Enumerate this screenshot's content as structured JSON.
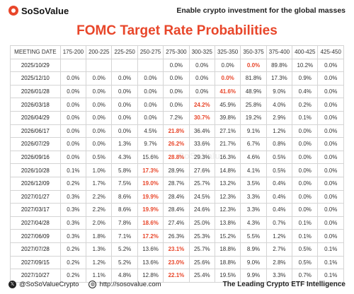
{
  "header": {
    "brand": "SoSoValue",
    "tagline": "Enable crypto investment for the global masses"
  },
  "title": "FOMC Target Rate Probabilities",
  "table": {
    "columns": [
      "MEETING DATE",
      "175-200",
      "200-225",
      "225-250",
      "250-275",
      "275-300",
      "300-325",
      "325-350",
      "350-375",
      "375-400",
      "400-425",
      "425-450"
    ],
    "rows": [
      {
        "date": "2025/10/29",
        "values": [
          "",
          "",
          "",
          "",
          "0.0%",
          "0.0%",
          "0.0%",
          "0.0%",
          "89.8%",
          "10.2%",
          "0.0%"
        ],
        "hi": 8
      },
      {
        "date": "2025/12/10",
        "values": [
          "0.0%",
          "0.0%",
          "0.0%",
          "0.0%",
          "0.0%",
          "0.0%",
          "0.0%",
          "81.8%",
          "17.3%",
          "0.9%",
          "0.0%"
        ],
        "hi": 7
      },
      {
        "date": "2026/01/28",
        "values": [
          "0.0%",
          "0.0%",
          "0.0%",
          "0.0%",
          "0.0%",
          "0.0%",
          "41.6%",
          "48.9%",
          "9.0%",
          "0.4%",
          "0.0%"
        ],
        "hi": 7
      },
      {
        "date": "2026/03/18",
        "values": [
          "0.0%",
          "0.0%",
          "0.0%",
          "0.0%",
          "0.0%",
          "24.2%",
          "45.9%",
          "25.8%",
          "4.0%",
          "0.2%",
          "0.0%"
        ],
        "hi": 6
      },
      {
        "date": "2026/04/29",
        "values": [
          "0.0%",
          "0.0%",
          "0.0%",
          "0.0%",
          "7.2%",
          "30.7%",
          "39.8%",
          "19.2%",
          "2.9%",
          "0.1%",
          "0.0%"
        ],
        "hi": 6
      },
      {
        "date": "2026/06/17",
        "values": [
          "0.0%",
          "0.0%",
          "0.0%",
          "4.5%",
          "21.8%",
          "36.4%",
          "27.1%",
          "9.1%",
          "1.2%",
          "0.0%",
          "0.0%"
        ],
        "hi": 5
      },
      {
        "date": "2026/07/29",
        "values": [
          "0.0%",
          "0.0%",
          "1.3%",
          "9.7%",
          "26.2%",
          "33.6%",
          "21.7%",
          "6.7%",
          "0.8%",
          "0.0%",
          "0.0%"
        ],
        "hi": 5
      },
      {
        "date": "2026/09/16",
        "values": [
          "0.0%",
          "0.5%",
          "4.3%",
          "15.6%",
          "28.8%",
          "29.3%",
          "16.3%",
          "4.6%",
          "0.5%",
          "0.0%",
          "0.0%"
        ],
        "hi": 5
      },
      {
        "date": "2026/10/28",
        "values": [
          "0.1%",
          "1.0%",
          "5.8%",
          "17.3%",
          "28.9%",
          "27.6%",
          "14.8%",
          "4.1%",
          "0.5%",
          "0.0%",
          "0.0%"
        ],
        "hi": 4
      },
      {
        "date": "2026/12/09",
        "values": [
          "0.2%",
          "1.7%",
          "7.5%",
          "19.0%",
          "28.7%",
          "25.7%",
          "13.2%",
          "3.5%",
          "0.4%",
          "0.0%",
          "0.0%"
        ],
        "hi": 4
      },
      {
        "date": "2027/01/27",
        "values": [
          "0.3%",
          "2.2%",
          "8.6%",
          "19.9%",
          "28.4%",
          "24.5%",
          "12.3%",
          "3.3%",
          "0.4%",
          "0.0%",
          "0.0%"
        ],
        "hi": 4
      },
      {
        "date": "2027/03/17",
        "values": [
          "0.3%",
          "2.2%",
          "8.6%",
          "19.9%",
          "28.4%",
          "24.6%",
          "12.3%",
          "3.3%",
          "0.4%",
          "0.0%",
          "0.0%"
        ],
        "hi": 4
      },
      {
        "date": "2027/04/28",
        "values": [
          "0.3%",
          "2.0%",
          "7.8%",
          "18.6%",
          "27.4%",
          "25.0%",
          "13.8%",
          "4.3%",
          "0.7%",
          "0.1%",
          "0.0%"
        ],
        "hi": 4
      },
      {
        "date": "2027/06/09",
        "values": [
          "0.3%",
          "1.8%",
          "7.1%",
          "17.2%",
          "26.3%",
          "25.3%",
          "15.2%",
          "5.5%",
          "1.2%",
          "0.1%",
          "0.0%"
        ],
        "hi": 4
      },
      {
        "date": "2027/07/28",
        "values": [
          "0.2%",
          "1.3%",
          "5.2%",
          "13.6%",
          "23.1%",
          "25.7%",
          "18.8%",
          "8.9%",
          "2.7%",
          "0.5%",
          "0.1%"
        ],
        "hi": 5
      },
      {
        "date": "2027/09/15",
        "values": [
          "0.2%",
          "1.2%",
          "5.2%",
          "13.6%",
          "23.0%",
          "25.6%",
          "18.8%",
          "9.0%",
          "2.8%",
          "0.5%",
          "0.1%"
        ],
        "hi": 5
      },
      {
        "date": "2027/10/27",
        "values": [
          "0.2%",
          "1.1%",
          "4.8%",
          "12.8%",
          "22.1%",
          "25.4%",
          "19.5%",
          "9.9%",
          "3.3%",
          "0.7%",
          "0.1%"
        ],
        "hi": 5
      }
    ]
  },
  "footer": {
    "handle": "@SoSoValueCrypto",
    "website": "http://sosovalue.com",
    "slogan": "The Leading Crypto ETF Intelligence"
  },
  "colors": {
    "accent": "#e8462a"
  },
  "icons": [
    "sosovalue-logo-icon",
    "x-twitter-icon",
    "globe-icon"
  ]
}
